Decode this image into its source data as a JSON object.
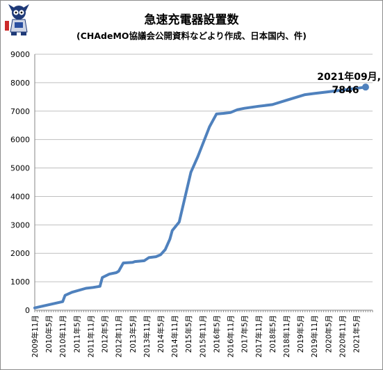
{
  "chart_data": {
    "type": "line",
    "title": "急速充電器設置数",
    "subtitle": "(CHAdeMO協議会公開資料などより作成、日本国内、件)",
    "xlabel": "",
    "ylabel": "",
    "ylim": [
      0,
      9000
    ],
    "yticks": [
      "0",
      "1000",
      "2000",
      "3000",
      "4000",
      "5000",
      "6000",
      "7000",
      "8000",
      "9000"
    ],
    "xticks": [
      "2009年11月",
      "2010年5月",
      "2010年11月",
      "2011年5月",
      "2011年11月",
      "2012年5月",
      "2012年11月",
      "2013年5月",
      "2013年11月",
      "2014年5月",
      "2014年11月",
      "2015年5月",
      "2015年11月",
      "2016年5月",
      "2016年11月",
      "2017年5月",
      "2017年11月",
      "2018年5月",
      "2018年11月",
      "2019年5月",
      "2019年11月",
      "2020年5月",
      "2020年11月",
      "2021年5月"
    ],
    "grid": "horizontal",
    "line_color": "#4f81bd",
    "series": [
      {
        "x": [
          "2009-11",
          "2010-11",
          "2010-12",
          "2011-03",
          "2011-09",
          "2011-12",
          "2012-03",
          "2012-04",
          "2012-07",
          "2012-10",
          "2012-11",
          "2013-01",
          "2013-05",
          "2013-06",
          "2013-10",
          "2013-12",
          "2014-03",
          "2014-05",
          "2014-07",
          "2014-09",
          "2014-10",
          "2015-01",
          "2015-06",
          "2015-09",
          "2016-02",
          "2016-05",
          "2016-08",
          "2016-11",
          "2017-02",
          "2017-05",
          "2017-11",
          "2018-05",
          "2018-11",
          "2019-07",
          "2019-11",
          "2020-05",
          "2020-11",
          "2021-05",
          "2021-09"
        ],
        "values": [
          80,
          300,
          520,
          630,
          770,
          800,
          840,
          1150,
          1270,
          1320,
          1370,
          1660,
          1680,
          1710,
          1740,
          1850,
          1880,
          1950,
          2130,
          2500,
          2800,
          3100,
          4850,
          5400,
          6450,
          6900,
          6920,
          6950,
          7050,
          7100,
          7170,
          7230,
          7380,
          7580,
          7620,
          7680,
          7740,
          7800,
          7846
        ]
      }
    ],
    "annotation": {
      "text_line1": "2021年09月,",
      "text_line2": "7846"
    }
  }
}
